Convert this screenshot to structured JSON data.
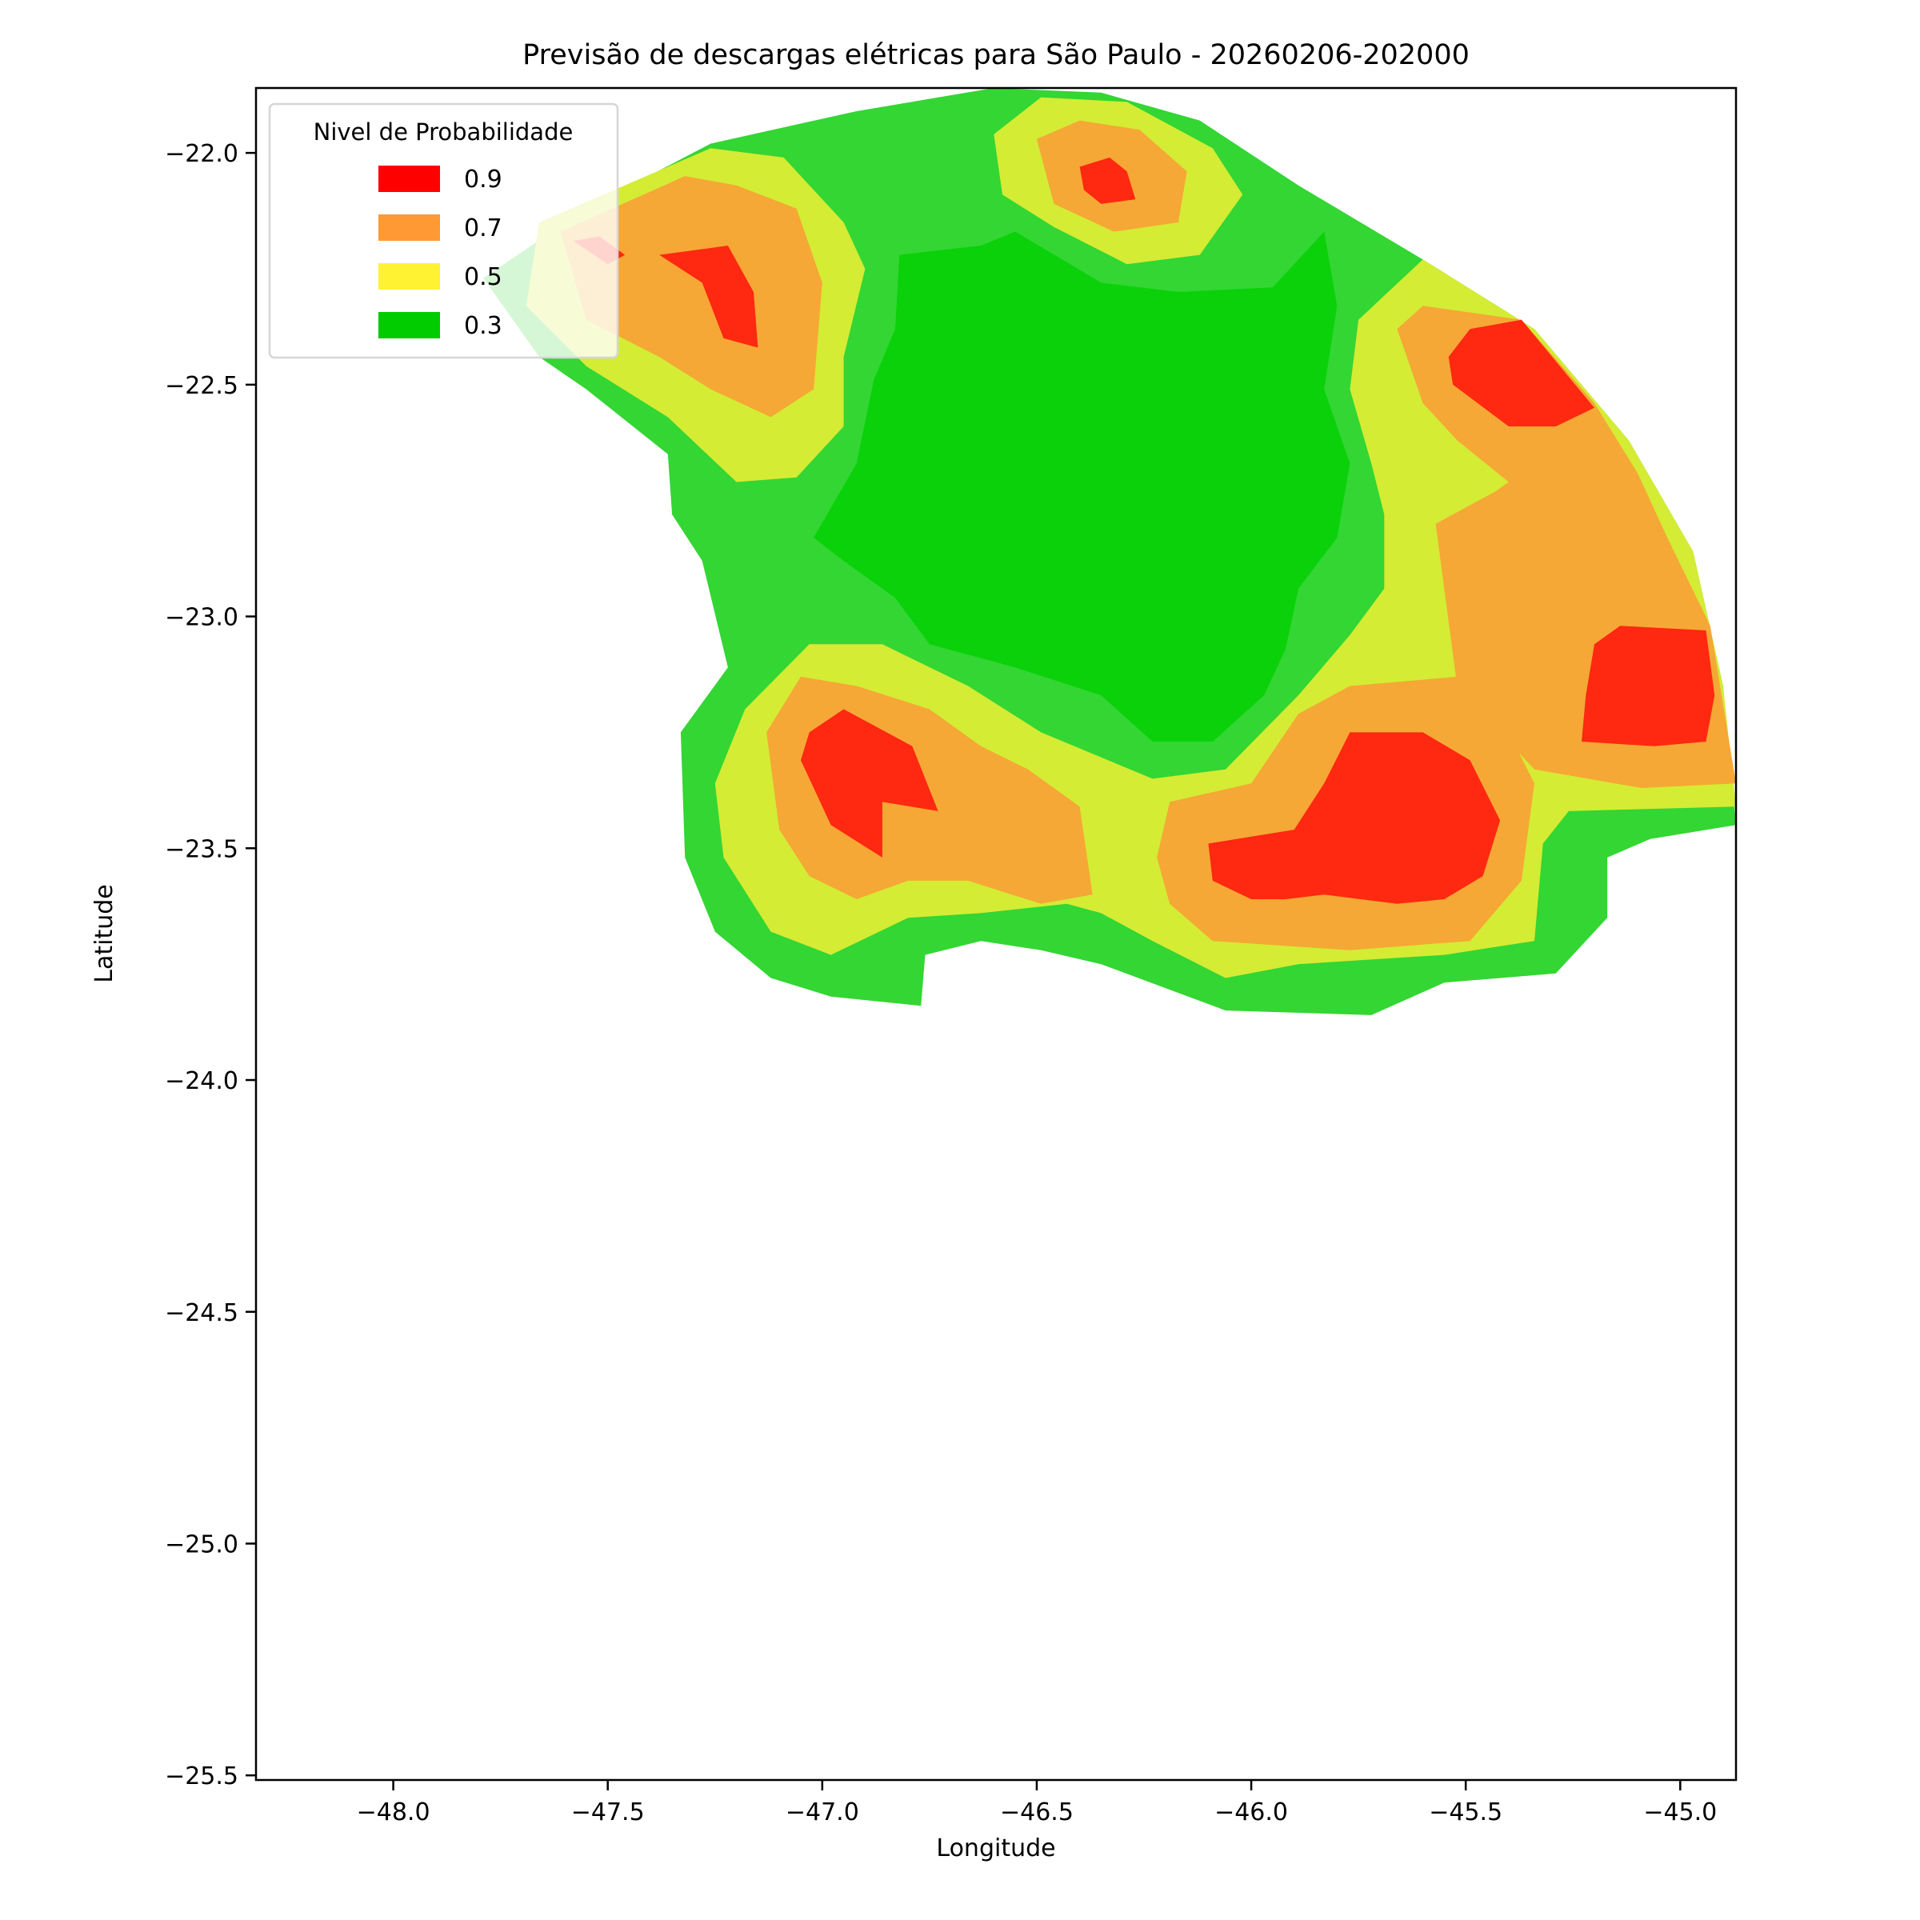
{
  "chart_data": {
    "type": "contour",
    "title": "Previsão de descargas elétricas para São Paulo - 20260206-202000",
    "xlabel": "Longitude",
    "ylabel": "Latitude",
    "xlim": [
      -48.32,
      -44.87
    ],
    "ylim": [
      -25.51,
      -21.86
    ],
    "xticks": [
      -48.0,
      -47.5,
      -47.0,
      -46.5,
      -46.0,
      -45.5,
      -45.0
    ],
    "xtick_labels": [
      "−48.0",
      "−47.5",
      "−47.0",
      "−46.5",
      "−46.0",
      "−45.5",
      "−45.0"
    ],
    "yticks": [
      -22.0,
      -22.5,
      -23.0,
      -23.5,
      -24.0,
      -24.5,
      -25.0,
      -25.5
    ],
    "ytick_labels": [
      "−22.0",
      "−22.5",
      "−23.0",
      "−23.5",
      "−24.0",
      "−24.5",
      "−25.0",
      "−25.5"
    ],
    "grid": false,
    "legend": {
      "title": "Nivel de Probabilidade",
      "placement": "top-left",
      "entries": [
        {
          "label": "0.9",
          "color": "#ff0000"
        },
        {
          "label": "0.7",
          "color": "#ff9933"
        },
        {
          "label": "0.5",
          "color": "#fff233"
        },
        {
          "label": "0.3",
          "color": "#00cc00"
        }
      ]
    },
    "level_colors": {
      "low": "#33d633",
      "0.3": "#0ad10a",
      "0.5": "#d4ec34",
      "0.7": "#f5a835",
      "0.9": "#ff2810"
    },
    "regions": [
      {
        "level": "low",
        "points": [
          [
            -47.79,
            -22.27
          ],
          [
            -47.55,
            -22.12
          ],
          [
            -47.26,
            -21.98
          ],
          [
            -46.92,
            -21.91
          ],
          [
            -46.6,
            -21.86
          ],
          [
            -46.35,
            -21.87
          ],
          [
            -46.12,
            -21.93
          ],
          [
            -45.89,
            -22.07
          ],
          [
            -45.6,
            -22.23
          ],
          [
            -45.34,
            -22.38
          ],
          [
            -45.12,
            -22.62
          ],
          [
            -44.97,
            -22.86
          ],
          [
            -44.9,
            -23.15
          ],
          [
            -44.87,
            -23.45
          ],
          [
            -45.07,
            -23.48
          ],
          [
            -45.17,
            -23.52
          ],
          [
            -45.17,
            -23.65
          ],
          [
            -45.29,
            -23.77
          ],
          [
            -45.55,
            -23.79
          ],
          [
            -45.72,
            -23.86
          ],
          [
            -46.06,
            -23.85
          ],
          [
            -46.35,
            -23.75
          ],
          [
            -46.49,
            -23.72
          ],
          [
            -46.63,
            -23.7
          ],
          [
            -46.76,
            -23.73
          ],
          [
            -46.77,
            -23.84
          ],
          [
            -46.98,
            -23.82
          ],
          [
            -47.12,
            -23.78
          ],
          [
            -47.25,
            -23.68
          ],
          [
            -47.32,
            -23.52
          ],
          [
            -47.33,
            -23.25
          ],
          [
            -47.22,
            -23.11
          ],
          [
            -47.28,
            -22.88
          ],
          [
            -47.35,
            -22.78
          ],
          [
            -47.36,
            -22.65
          ],
          [
            -47.55,
            -22.51
          ],
          [
            -47.66,
            -22.44
          ]
        ]
      },
      {
        "level": "0.3",
        "points": [
          [
            -46.82,
            -22.22
          ],
          [
            -46.63,
            -22.2
          ],
          [
            -46.55,
            -22.17
          ],
          [
            -46.35,
            -22.28
          ],
          [
            -46.17,
            -22.3
          ],
          [
            -45.95,
            -22.29
          ],
          [
            -45.83,
            -22.17
          ],
          [
            -45.8,
            -22.33
          ],
          [
            -45.83,
            -22.51
          ],
          [
            -45.77,
            -22.67
          ],
          [
            -45.8,
            -22.83
          ],
          [
            -45.89,
            -22.94
          ],
          [
            -45.92,
            -23.07
          ],
          [
            -45.97,
            -23.17
          ],
          [
            -46.09,
            -23.27
          ],
          [
            -46.23,
            -23.27
          ],
          [
            -46.35,
            -23.17
          ],
          [
            -46.55,
            -23.11
          ],
          [
            -46.75,
            -23.06
          ],
          [
            -46.83,
            -22.96
          ],
          [
            -46.95,
            -22.88
          ],
          [
            -47.02,
            -22.83
          ],
          [
            -46.92,
            -22.67
          ],
          [
            -46.88,
            -22.49
          ],
          [
            -46.83,
            -22.38
          ]
        ]
      },
      {
        "level": "0.5",
        "points": [
          [
            -47.66,
            -22.15
          ],
          [
            -47.26,
            -21.99
          ],
          [
            -47.09,
            -22.01
          ],
          [
            -46.95,
            -22.15
          ],
          [
            -46.9,
            -22.25
          ],
          [
            -46.95,
            -22.44
          ],
          [
            -46.95,
            -22.59
          ],
          [
            -47.06,
            -22.7
          ],
          [
            -47.2,
            -22.71
          ],
          [
            -47.36,
            -22.57
          ],
          [
            -47.55,
            -22.46
          ],
          [
            -47.69,
            -22.33
          ]
        ]
      },
      {
        "level": "0.5",
        "points": [
          [
            -46.6,
            -21.96
          ],
          [
            -46.49,
            -21.88
          ],
          [
            -46.29,
            -21.89
          ],
          [
            -46.09,
            -21.99
          ],
          [
            -46.02,
            -22.09
          ],
          [
            -46.12,
            -22.22
          ],
          [
            -46.29,
            -22.24
          ],
          [
            -46.46,
            -22.16
          ],
          [
            -46.58,
            -22.09
          ]
        ]
      },
      {
        "level": "0.5",
        "points": [
          [
            -45.6,
            -22.23
          ],
          [
            -45.34,
            -22.38
          ],
          [
            -45.12,
            -22.62
          ],
          [
            -44.97,
            -22.86
          ],
          [
            -44.9,
            -23.15
          ],
          [
            -44.87,
            -23.41
          ],
          [
            -45.26,
            -23.42
          ],
          [
            -45.32,
            -23.49
          ],
          [
            -45.34,
            -23.7
          ],
          [
            -45.55,
            -23.73
          ],
          [
            -45.89,
            -23.75
          ],
          [
            -46.06,
            -23.78
          ],
          [
            -46.23,
            -23.7
          ],
          [
            -46.35,
            -23.64
          ],
          [
            -46.43,
            -23.62
          ],
          [
            -46.63,
            -23.64
          ],
          [
            -46.8,
            -23.65
          ],
          [
            -46.98,
            -23.73
          ],
          [
            -47.12,
            -23.68
          ],
          [
            -47.23,
            -23.52
          ],
          [
            -47.25,
            -23.36
          ],
          [
            -47.18,
            -23.2
          ],
          [
            -47.03,
            -23.06
          ],
          [
            -46.86,
            -23.06
          ],
          [
            -46.66,
            -23.15
          ],
          [
            -46.49,
            -23.25
          ],
          [
            -46.23,
            -23.35
          ],
          [
            -46.06,
            -23.33
          ],
          [
            -45.89,
            -23.17
          ],
          [
            -45.77,
            -23.04
          ],
          [
            -45.69,
            -22.94
          ],
          [
            -45.69,
            -22.78
          ],
          [
            -45.72,
            -22.67
          ],
          [
            -45.77,
            -22.51
          ],
          [
            -45.75,
            -22.36
          ]
        ]
      },
      {
        "level": "0.7",
        "points": [
          [
            -47.61,
            -22.17
          ],
          [
            -47.32,
            -22.05
          ],
          [
            -47.2,
            -22.07
          ],
          [
            -47.06,
            -22.12
          ],
          [
            -47.0,
            -22.28
          ],
          [
            -47.02,
            -22.51
          ],
          [
            -47.12,
            -22.57
          ],
          [
            -47.26,
            -22.51
          ],
          [
            -47.38,
            -22.44
          ],
          [
            -47.55,
            -22.36
          ]
        ]
      },
      {
        "level": "0.7",
        "points": [
          [
            -46.5,
            -21.97
          ],
          [
            -46.4,
            -21.93
          ],
          [
            -46.26,
            -21.95
          ],
          [
            -46.15,
            -22.04
          ],
          [
            -46.17,
            -22.15
          ],
          [
            -46.32,
            -22.17
          ],
          [
            -46.46,
            -22.11
          ]
        ]
      },
      {
        "level": "0.7",
        "points": [
          [
            -45.66,
            -22.38
          ],
          [
            -45.6,
            -22.33
          ],
          [
            -45.37,
            -22.36
          ],
          [
            -45.2,
            -22.54
          ],
          [
            -45.1,
            -22.69
          ],
          [
            -45.03,
            -22.83
          ],
          [
            -44.93,
            -23.02
          ],
          [
            -44.87,
            -23.36
          ],
          [
            -45.09,
            -23.37
          ],
          [
            -45.34,
            -23.33
          ],
          [
            -45.52,
            -23.15
          ],
          [
            -45.57,
            -22.8
          ],
          [
            -45.43,
            -22.73
          ],
          [
            -45.4,
            -22.71
          ],
          [
            -45.52,
            -22.62
          ],
          [
            -45.6,
            -22.54
          ]
        ]
      },
      {
        "level": "0.7",
        "points": [
          [
            -47.13,
            -23.25
          ],
          [
            -47.05,
            -23.13
          ],
          [
            -46.92,
            -23.15
          ],
          [
            -46.75,
            -23.2
          ],
          [
            -46.63,
            -23.28
          ],
          [
            -46.52,
            -23.33
          ],
          [
            -46.4,
            -23.41
          ],
          [
            -46.37,
            -23.6
          ],
          [
            -46.49,
            -23.62
          ],
          [
            -46.66,
            -23.57
          ],
          [
            -46.8,
            -23.57
          ],
          [
            -46.92,
            -23.61
          ],
          [
            -47.03,
            -23.56
          ],
          [
            -47.1,
            -23.46
          ]
        ]
      },
      {
        "level": "0.7",
        "points": [
          [
            -46.19,
            -23.4
          ],
          [
            -46.0,
            -23.36
          ],
          [
            -45.89,
            -23.21
          ],
          [
            -45.77,
            -23.15
          ],
          [
            -45.52,
            -23.13
          ],
          [
            -45.4,
            -23.25
          ],
          [
            -45.34,
            -23.36
          ],
          [
            -45.37,
            -23.57
          ],
          [
            -45.49,
            -23.7
          ],
          [
            -45.77,
            -23.72
          ],
          [
            -46.09,
            -23.7
          ],
          [
            -46.19,
            -23.62
          ],
          [
            -46.22,
            -23.52
          ]
        ]
      },
      {
        "level": "0.9",
        "points": [
          [
            -47.38,
            -22.22
          ],
          [
            -47.22,
            -22.2
          ],
          [
            -47.16,
            -22.3
          ],
          [
            -47.15,
            -22.42
          ],
          [
            -47.23,
            -22.4
          ],
          [
            -47.28,
            -22.28
          ]
        ]
      },
      {
        "level": "0.9",
        "points": [
          [
            -47.58,
            -22.19
          ],
          [
            -47.52,
            -22.18
          ],
          [
            -47.46,
            -22.22
          ],
          [
            -47.5,
            -22.24
          ]
        ]
      },
      {
        "level": "0.9",
        "points": [
          [
            -46.4,
            -22.03
          ],
          [
            -46.33,
            -22.01
          ],
          [
            -46.29,
            -22.04
          ],
          [
            -46.27,
            -22.1
          ],
          [
            -46.35,
            -22.11
          ],
          [
            -46.39,
            -22.08
          ]
        ]
      },
      {
        "level": "0.9",
        "points": [
          [
            -45.54,
            -22.44
          ],
          [
            -45.49,
            -22.38
          ],
          [
            -45.37,
            -22.36
          ],
          [
            -45.2,
            -22.55
          ],
          [
            -45.29,
            -22.59
          ],
          [
            -45.4,
            -22.59
          ],
          [
            -45.53,
            -22.5
          ]
        ]
      },
      {
        "level": "0.9",
        "points": [
          [
            -45.2,
            -23.06
          ],
          [
            -45.14,
            -23.02
          ],
          [
            -44.94,
            -23.03
          ],
          [
            -44.92,
            -23.17
          ],
          [
            -44.94,
            -23.27
          ],
          [
            -45.06,
            -23.28
          ],
          [
            -45.23,
            -23.27
          ],
          [
            -45.22,
            -23.17
          ]
        ]
      },
      {
        "level": "0.9",
        "points": [
          [
            -47.03,
            -23.25
          ],
          [
            -46.95,
            -23.2
          ],
          [
            -46.79,
            -23.28
          ],
          [
            -46.73,
            -23.42
          ],
          [
            -46.86,
            -23.4
          ],
          [
            -46.86,
            -23.52
          ],
          [
            -46.98,
            -23.45
          ],
          [
            -47.05,
            -23.31
          ]
        ]
      },
      {
        "level": "0.9",
        "points": [
          [
            -46.1,
            -23.49
          ],
          [
            -45.9,
            -23.46
          ],
          [
            -45.83,
            -23.36
          ],
          [
            -45.77,
            -23.25
          ],
          [
            -45.6,
            -23.25
          ],
          [
            -45.49,
            -23.31
          ],
          [
            -45.42,
            -23.44
          ],
          [
            -45.46,
            -23.56
          ],
          [
            -45.55,
            -23.61
          ],
          [
            -45.66,
            -23.62
          ],
          [
            -45.83,
            -23.6
          ],
          [
            -45.92,
            -23.61
          ],
          [
            -46.0,
            -23.61
          ],
          [
            -46.09,
            -23.57
          ]
        ]
      }
    ]
  }
}
